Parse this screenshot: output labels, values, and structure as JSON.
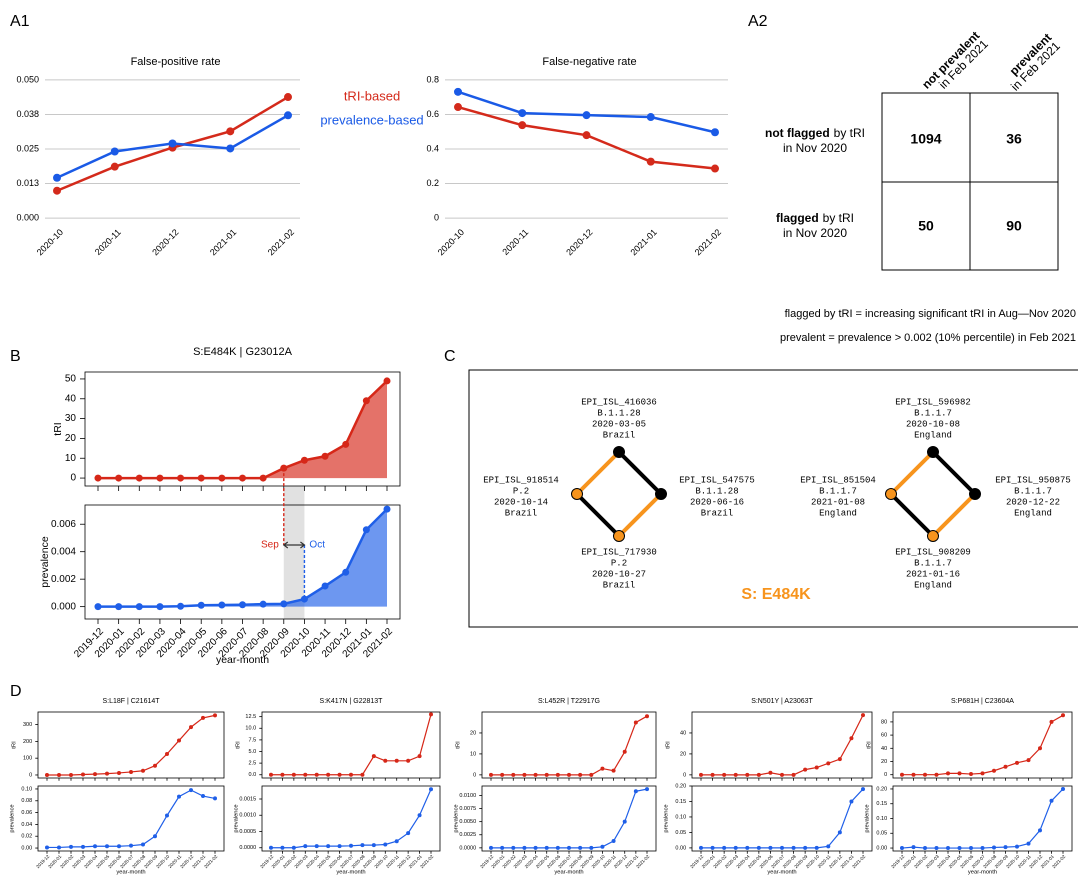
{
  "panel_labels": [
    "A1",
    "A2",
    "B",
    "C",
    "D"
  ],
  "chart_data": [
    {
      "type": "line",
      "title": "False-positive rate",
      "categories": [
        "2020-10",
        "2020-11",
        "2020-12",
        "2021-01",
        "2021-02"
      ],
      "series": [
        {
          "name": "tRI-based",
          "color": "#d42a1b",
          "values": [
            0.0099,
            0.0186,
            0.0255,
            0.0314,
            0.0438
          ]
        },
        {
          "name": "prevalence-based",
          "color": "#1a5ae6",
          "values": [
            0.0146,
            0.0241,
            0.027,
            0.0252,
            0.0372
          ]
        }
      ],
      "ylim": [
        -0.0025,
        0.0525
      ],
      "yticks": [
        {
          "value": 0,
          "label": "0.000"
        },
        {
          "value": 0.0125,
          "label": "0.013"
        },
        {
          "value": 0.025,
          "label": "0.025"
        },
        {
          "value": 0.0375,
          "label": "0.038"
        },
        {
          "value": 0.05,
          "label": "0.050"
        }
      ],
      "grid": true
    },
    {
      "type": "line",
      "title": "False-negative rate",
      "categories": [
        "2020-10",
        "2020-11",
        "2020-12",
        "2021-01",
        "2021-02"
      ],
      "series": [
        {
          "color": "#d42a1b",
          "values": [
            0.643,
            0.538,
            0.48,
            0.327,
            0.287
          ]
        },
        {
          "color": "#1a5ae6",
          "values": [
            0.731,
            0.608,
            0.596,
            0.585,
            0.497
          ]
        }
      ],
      "ylim": [
        -0.04,
        0.84
      ],
      "yticks": [
        0,
        0.2,
        0.4,
        0.6,
        0.8
      ],
      "grid": true
    },
    {
      "type": "line",
      "title": "S:E484K | G23012A",
      "categories": [
        "2019-12",
        "2020-01",
        "2020-02",
        "2020-03",
        "2020-04",
        "2020-05",
        "2020-06",
        "2020-07",
        "2020-08",
        "2020-09",
        "2020-10",
        "2020-11",
        "2020-12",
        "2021-01",
        "2021-02"
      ],
      "xlabel": "year-month",
      "fill": true,
      "annotations": [
        "Sep",
        "Oct"
      ],
      "panels": [
        {
          "ylabel": "tRI",
          "color": "#d62718",
          "values": [
            0,
            0,
            0,
            0,
            0,
            0,
            0,
            0,
            0,
            5,
            9,
            11,
            17,
            39,
            49
          ],
          "ylim": [
            -4,
            53.5
          ],
          "yticks": [
            0,
            10,
            20,
            30,
            40,
            50
          ]
        },
        {
          "ylabel": "prevalence",
          "color": "#1f5fe8",
          "values": [
            0,
            0,
            0,
            0,
            3e-05,
            0.0001,
            0.00012,
            0.00014,
            0.00018,
            0.0002,
            0.00055,
            0.0015,
            0.0025,
            0.0056,
            0.0071
          ],
          "ylim": [
            -0.0009,
            0.0074
          ],
          "yticks": [
            {
              "value": 0,
              "label": "0.000"
            },
            {
              "value": 0.002,
              "label": "0.002"
            },
            {
              "value": 0.004,
              "label": "0.004"
            },
            {
              "value": 0.006,
              "label": "0.006"
            }
          ]
        }
      ]
    },
    {
      "type": "line",
      "title": "S:L18F | C21614T",
      "categories": [
        "2019-12",
        "2020-01",
        "2020-02",
        "2020-03",
        "2020-04",
        "2020-05",
        "2020-06",
        "2020-07",
        "2020-08",
        "2020-09",
        "2020-10",
        "2020-11",
        "2020-12",
        "2021-01",
        "2021-02"
      ],
      "xlabel": "year-month",
      "fill": false,
      "panels": [
        {
          "ylabel": "tRI",
          "color": "#d62718",
          "values": [
            0,
            0,
            0,
            3,
            5,
            8,
            12,
            18,
            25,
            55,
            125,
            205,
            285,
            340,
            355
          ],
          "ylim": [
            -18,
            375
          ],
          "yticks": [
            0,
            100,
            200,
            300
          ]
        },
        {
          "ylabel": "prevalence",
          "color": "#1f5fe8",
          "values": [
            0.001,
            0.001,
            0.002,
            0.002,
            0.003,
            0.003,
            0.003,
            0.004,
            0.006,
            0.02,
            0.055,
            0.087,
            0.098,
            0.088,
            0.084
          ],
          "ylim": [
            -0.005,
            0.105
          ],
          "yticks": [
            {
              "value": 0,
              "label": "0.00"
            },
            {
              "value": 0.02,
              "label": "0.02"
            },
            {
              "value": 0.04,
              "label": "0.04"
            },
            {
              "value": 0.06,
              "label": "0.06"
            },
            {
              "value": 0.08,
              "label": "0.08"
            },
            {
              "value": 0.1,
              "label": "0.10"
            }
          ]
        }
      ]
    },
    {
      "type": "line",
      "title": "S:K417N | G22813T",
      "categories": [
        "2019-12",
        "2020-01",
        "2020-02",
        "2020-03",
        "2020-04",
        "2020-05",
        "2020-06",
        "2020-07",
        "2020-08",
        "2020-09",
        "2020-10",
        "2020-11",
        "2020-12",
        "2021-01",
        "2021-02"
      ],
      "xlabel": "year-month",
      "fill": false,
      "panels": [
        {
          "ylabel": "tRI",
          "color": "#d62718",
          "values": [
            0,
            0,
            0,
            0,
            0,
            0,
            0,
            0,
            0,
            4,
            3,
            3,
            3,
            4,
            13
          ],
          "ylim": [
            -0.7,
            13.5
          ],
          "yticks": [
            {
              "value": 0,
              "label": "0.0"
            },
            2.5,
            {
              "value": 5,
              "label": "5.0"
            },
            7.5,
            {
              "value": 10,
              "label": "10.0"
            },
            12.5
          ]
        },
        {
          "ylabel": "prevalence",
          "color": "#1f5fe8",
          "values": [
            0,
            0,
            0,
            5e-05,
            5e-05,
            5e-05,
            5e-05,
            6e-05,
            8e-05,
            8e-05,
            0.0001,
            0.0002,
            0.00045,
            0.001,
            0.0018
          ],
          "ylim": [
            -0.0001,
            0.0019
          ],
          "yticks": [
            {
              "value": 0,
              "label": "0.0000"
            },
            {
              "value": 0.0005,
              "label": "0.0005"
            },
            {
              "value": 0.001,
              "label": "0.0010"
            },
            {
              "value": 0.0015,
              "label": "0.0015"
            }
          ]
        }
      ]
    },
    {
      "type": "line",
      "title": "S:L452R | T22917G",
      "categories": [
        "2019-12",
        "2020-01",
        "2020-02",
        "2020-03",
        "2020-04",
        "2020-05",
        "2020-06",
        "2020-07",
        "2020-08",
        "2020-09",
        "2020-10",
        "2020-11",
        "2020-12",
        "2021-01",
        "2021-02"
      ],
      "xlabel": "year-month",
      "fill": false,
      "panels": [
        {
          "ylabel": "tRI",
          "color": "#d62718",
          "values": [
            0,
            0,
            0,
            0,
            0,
            0,
            0,
            0,
            0,
            0,
            3,
            2,
            11,
            25,
            28
          ],
          "ylim": [
            -1.5,
            30
          ],
          "yticks": [
            0,
            10,
            20
          ]
        },
        {
          "ylabel": "prevalence",
          "color": "#1f5fe8",
          "values": [
            0,
            0,
            0,
            0,
            0,
            0,
            0,
            0,
            0,
            0,
            0.0002,
            0.0013,
            0.005,
            0.0108,
            0.0112
          ],
          "ylim": [
            -0.0006,
            0.0118
          ],
          "yticks": [
            {
              "value": 0,
              "label": "0.0000"
            },
            {
              "value": 0.0025,
              "label": "0.0025"
            },
            {
              "value": 0.005,
              "label": "0.0050"
            },
            {
              "value": 0.0075,
              "label": "0.0075"
            },
            {
              "value": 0.01,
              "label": "0.0100"
            }
          ]
        }
      ]
    },
    {
      "type": "line",
      "title": "S:N501Y | A23063T",
      "categories": [
        "2019-12",
        "2020-01",
        "2020-02",
        "2020-03",
        "2020-04",
        "2020-05",
        "2020-06",
        "2020-07",
        "2020-08",
        "2020-09",
        "2020-10",
        "2020-11",
        "2020-12",
        "2021-01",
        "2021-02"
      ],
      "xlabel": "year-month",
      "fill": false,
      "panels": [
        {
          "ylabel": "tRI",
          "color": "#d62718",
          "values": [
            0,
            0,
            0,
            0,
            0,
            0,
            2,
            0,
            0,
            5,
            7,
            11,
            15,
            35,
            57
          ],
          "ylim": [
            -3,
            60
          ],
          "yticks": [
            0,
            20,
            40
          ]
        },
        {
          "ylabel": "prevalence",
          "color": "#1f5fe8",
          "values": [
            0,
            0,
            0,
            0,
            0,
            0,
            0,
            0,
            0,
            0,
            0,
            0.005,
            0.05,
            0.15,
            0.19
          ],
          "ylim": [
            -0.01,
            0.2
          ],
          "yticks": [
            {
              "value": 0,
              "label": "0.00"
            },
            {
              "value": 0.05,
              "label": "0.05"
            },
            {
              "value": 0.1,
              "label": "0.10"
            },
            {
              "value": 0.15,
              "label": "0.15"
            },
            {
              "value": 0.2,
              "label": "0.20"
            }
          ]
        }
      ]
    },
    {
      "type": "line",
      "title": "S:P681H | C23604A",
      "categories": [
        "2019-12",
        "2020-01",
        "2020-02",
        "2020-03",
        "2020-04",
        "2020-05",
        "2020-06",
        "2020-07",
        "2020-08",
        "2020-09",
        "2020-10",
        "2020-11",
        "2020-12",
        "2021-01",
        "2021-02"
      ],
      "xlabel": "year-month",
      "fill": false,
      "panels": [
        {
          "ylabel": "tRI",
          "color": "#d62718",
          "values": [
            0,
            0,
            0,
            0,
            2,
            2,
            1,
            2,
            6,
            12,
            18,
            22,
            40,
            80,
            90
          ],
          "ylim": [
            -5,
            95
          ],
          "yticks": [
            0,
            20,
            40,
            60,
            80
          ]
        },
        {
          "ylabel": "prevalence",
          "color": "#1f5fe8",
          "values": [
            0,
            0.003,
            0,
            0,
            0,
            0,
            0,
            0,
            0.002,
            0.003,
            0.005,
            0.015,
            0.06,
            0.16,
            0.2
          ],
          "ylim": [
            -0.01,
            0.21
          ],
          "yticks": [
            {
              "value": 0,
              "label": "0.00"
            },
            {
              "value": 0.05,
              "label": "0.05"
            },
            {
              "value": 0.1,
              "label": "0.10"
            },
            {
              "value": 0.15,
              "label": "0.15"
            },
            {
              "value": 0.2,
              "label": "0.20"
            }
          ]
        }
      ]
    }
  ],
  "table": {
    "columns": [
      {
        "bold": "not prevalent",
        "rest": "in Feb 2021"
      },
      {
        "bold": "prevalent",
        "rest": "in Feb 2021"
      }
    ],
    "rows": [
      {
        "bold": "not flagged",
        "rest": "by tRI",
        "line2": "in Nov 2020"
      },
      {
        "bold": "flagged",
        "rest": "by tRI",
        "line2": "in Nov 2020"
      }
    ],
    "cells": [
      [
        1094,
        36
      ],
      [
        50,
        90
      ]
    ],
    "notes": [
      "flagged by tRI = increasing significant tRI in Aug—Nov 2020",
      "prevalent = prevalence > 0.002 (10% percentile) in Feb 2021"
    ]
  },
  "diagram": {
    "groups": [
      {
        "nodes": [
          {
            "lines": [
              "EPI_ISL_416036",
              "B.1.1.28",
              "2020-03-05",
              "Brazil"
            ]
          },
          {
            "lines": [
              "EPI_ISL_547575",
              "B.1.1.28",
              "2020-06-16",
              "Brazil"
            ]
          },
          {
            "lines": [
              "EPI_ISL_717930",
              "P.2",
              "2020-10-27",
              "Brazil"
            ]
          },
          {
            "lines": [
              "EPI_ISL_918514",
              "P.2",
              "2020-10-14",
              "Brazil"
            ]
          }
        ]
      },
      {
        "nodes": [
          {
            "lines": [
              "EPI_ISL_596982",
              "B.1.1.7",
              "2020-10-08",
              "England"
            ]
          },
          {
            "lines": [
              "EPI_ISL_950875",
              "B.1.1.7",
              "2020-12-22",
              "England"
            ]
          },
          {
            "lines": [
              "EPI_ISL_908209",
              "B.1.1.7",
              "2021-01-16",
              "England"
            ]
          },
          {
            "lines": [
              "EPI_ISL_851504",
              "B.1.1.7",
              "2021-01-08",
              "England"
            ]
          }
        ]
      }
    ],
    "label": "S: E484K"
  }
}
